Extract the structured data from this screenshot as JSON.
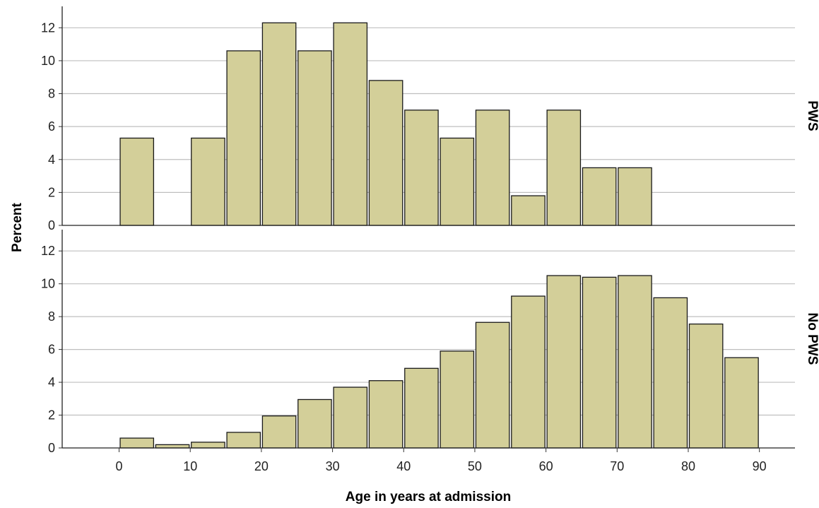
{
  "chart_data": {
    "type": "bar",
    "subtype": "faceted-histogram",
    "xlabel": "Age in years at admission",
    "ylabel": "Percent",
    "bin_width": 5,
    "bins": [
      0,
      5,
      10,
      15,
      20,
      25,
      30,
      35,
      40,
      45,
      50,
      55,
      60,
      65,
      70,
      75,
      80,
      85
    ],
    "xlim": [
      -8,
      95
    ],
    "xticks": [
      0,
      10,
      20,
      30,
      40,
      50,
      60,
      70,
      80,
      90
    ],
    "xtick_labels": [
      "0",
      "10",
      "20",
      "30",
      "40",
      "50",
      "60",
      "70",
      "80",
      "90"
    ],
    "ylim": [
      0,
      13.3
    ],
    "yticks": [
      0,
      2,
      4,
      6,
      8,
      10,
      12
    ],
    "ytick_labels": [
      "0",
      "2",
      "4",
      "6",
      "8",
      "10",
      "12"
    ],
    "grid": true,
    "bar_color": "#d3cf99",
    "bar_edge_color": "#1a1a1a",
    "grid_color": "#bfbfbf",
    "panels": [
      {
        "label": "PWS",
        "values": [
          5.3,
          0,
          5.3,
          10.6,
          12.3,
          10.6,
          12.3,
          8.8,
          7.0,
          5.3,
          7.0,
          1.8,
          7.0,
          3.5,
          3.5,
          0,
          0,
          0
        ]
      },
      {
        "label": "No PWS",
        "values": [
          0.6,
          0.2,
          0.35,
          0.95,
          1.95,
          2.95,
          3.7,
          4.1,
          4.85,
          5.9,
          7.65,
          9.25,
          10.5,
          10.4,
          10.5,
          9.15,
          7.55,
          5.5
        ]
      }
    ]
  }
}
